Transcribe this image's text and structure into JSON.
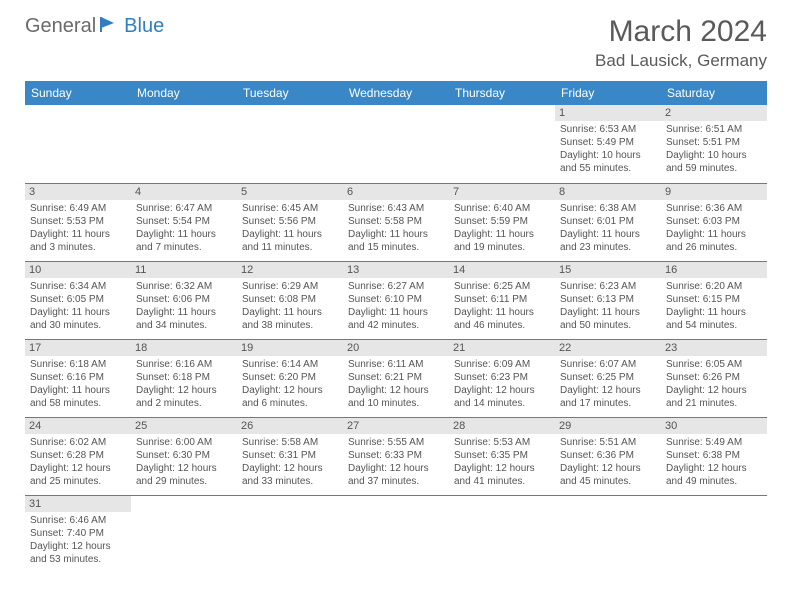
{
  "logo": {
    "general": "General",
    "blue": "Blue"
  },
  "title": "March 2024",
  "location": "Bad Lausick, Germany",
  "header_bg": "#3a87c8",
  "header_fg": "#ffffff",
  "daynum_bg": "#e6e6e6",
  "border_color": "#3a87c8",
  "weekdays": [
    "Sunday",
    "Monday",
    "Tuesday",
    "Wednesday",
    "Thursday",
    "Friday",
    "Saturday"
  ],
  "weeks": [
    [
      null,
      null,
      null,
      null,
      null,
      {
        "n": "1",
        "sr": "Sunrise: 6:53 AM",
        "ss": "Sunset: 5:49 PM",
        "dl1": "Daylight: 10 hours",
        "dl2": "and 55 minutes."
      },
      {
        "n": "2",
        "sr": "Sunrise: 6:51 AM",
        "ss": "Sunset: 5:51 PM",
        "dl1": "Daylight: 10 hours",
        "dl2": "and 59 minutes."
      }
    ],
    [
      {
        "n": "3",
        "sr": "Sunrise: 6:49 AM",
        "ss": "Sunset: 5:53 PM",
        "dl1": "Daylight: 11 hours",
        "dl2": "and 3 minutes."
      },
      {
        "n": "4",
        "sr": "Sunrise: 6:47 AM",
        "ss": "Sunset: 5:54 PM",
        "dl1": "Daylight: 11 hours",
        "dl2": "and 7 minutes."
      },
      {
        "n": "5",
        "sr": "Sunrise: 6:45 AM",
        "ss": "Sunset: 5:56 PM",
        "dl1": "Daylight: 11 hours",
        "dl2": "and 11 minutes."
      },
      {
        "n": "6",
        "sr": "Sunrise: 6:43 AM",
        "ss": "Sunset: 5:58 PM",
        "dl1": "Daylight: 11 hours",
        "dl2": "and 15 minutes."
      },
      {
        "n": "7",
        "sr": "Sunrise: 6:40 AM",
        "ss": "Sunset: 5:59 PM",
        "dl1": "Daylight: 11 hours",
        "dl2": "and 19 minutes."
      },
      {
        "n": "8",
        "sr": "Sunrise: 6:38 AM",
        "ss": "Sunset: 6:01 PM",
        "dl1": "Daylight: 11 hours",
        "dl2": "and 23 minutes."
      },
      {
        "n": "9",
        "sr": "Sunrise: 6:36 AM",
        "ss": "Sunset: 6:03 PM",
        "dl1": "Daylight: 11 hours",
        "dl2": "and 26 minutes."
      }
    ],
    [
      {
        "n": "10",
        "sr": "Sunrise: 6:34 AM",
        "ss": "Sunset: 6:05 PM",
        "dl1": "Daylight: 11 hours",
        "dl2": "and 30 minutes."
      },
      {
        "n": "11",
        "sr": "Sunrise: 6:32 AM",
        "ss": "Sunset: 6:06 PM",
        "dl1": "Daylight: 11 hours",
        "dl2": "and 34 minutes."
      },
      {
        "n": "12",
        "sr": "Sunrise: 6:29 AM",
        "ss": "Sunset: 6:08 PM",
        "dl1": "Daylight: 11 hours",
        "dl2": "and 38 minutes."
      },
      {
        "n": "13",
        "sr": "Sunrise: 6:27 AM",
        "ss": "Sunset: 6:10 PM",
        "dl1": "Daylight: 11 hours",
        "dl2": "and 42 minutes."
      },
      {
        "n": "14",
        "sr": "Sunrise: 6:25 AM",
        "ss": "Sunset: 6:11 PM",
        "dl1": "Daylight: 11 hours",
        "dl2": "and 46 minutes."
      },
      {
        "n": "15",
        "sr": "Sunrise: 6:23 AM",
        "ss": "Sunset: 6:13 PM",
        "dl1": "Daylight: 11 hours",
        "dl2": "and 50 minutes."
      },
      {
        "n": "16",
        "sr": "Sunrise: 6:20 AM",
        "ss": "Sunset: 6:15 PM",
        "dl1": "Daylight: 11 hours",
        "dl2": "and 54 minutes."
      }
    ],
    [
      {
        "n": "17",
        "sr": "Sunrise: 6:18 AM",
        "ss": "Sunset: 6:16 PM",
        "dl1": "Daylight: 11 hours",
        "dl2": "and 58 minutes."
      },
      {
        "n": "18",
        "sr": "Sunrise: 6:16 AM",
        "ss": "Sunset: 6:18 PM",
        "dl1": "Daylight: 12 hours",
        "dl2": "and 2 minutes."
      },
      {
        "n": "19",
        "sr": "Sunrise: 6:14 AM",
        "ss": "Sunset: 6:20 PM",
        "dl1": "Daylight: 12 hours",
        "dl2": "and 6 minutes."
      },
      {
        "n": "20",
        "sr": "Sunrise: 6:11 AM",
        "ss": "Sunset: 6:21 PM",
        "dl1": "Daylight: 12 hours",
        "dl2": "and 10 minutes."
      },
      {
        "n": "21",
        "sr": "Sunrise: 6:09 AM",
        "ss": "Sunset: 6:23 PM",
        "dl1": "Daylight: 12 hours",
        "dl2": "and 14 minutes."
      },
      {
        "n": "22",
        "sr": "Sunrise: 6:07 AM",
        "ss": "Sunset: 6:25 PM",
        "dl1": "Daylight: 12 hours",
        "dl2": "and 17 minutes."
      },
      {
        "n": "23",
        "sr": "Sunrise: 6:05 AM",
        "ss": "Sunset: 6:26 PM",
        "dl1": "Daylight: 12 hours",
        "dl2": "and 21 minutes."
      }
    ],
    [
      {
        "n": "24",
        "sr": "Sunrise: 6:02 AM",
        "ss": "Sunset: 6:28 PM",
        "dl1": "Daylight: 12 hours",
        "dl2": "and 25 minutes."
      },
      {
        "n": "25",
        "sr": "Sunrise: 6:00 AM",
        "ss": "Sunset: 6:30 PM",
        "dl1": "Daylight: 12 hours",
        "dl2": "and 29 minutes."
      },
      {
        "n": "26",
        "sr": "Sunrise: 5:58 AM",
        "ss": "Sunset: 6:31 PM",
        "dl1": "Daylight: 12 hours",
        "dl2": "and 33 minutes."
      },
      {
        "n": "27",
        "sr": "Sunrise: 5:55 AM",
        "ss": "Sunset: 6:33 PM",
        "dl1": "Daylight: 12 hours",
        "dl2": "and 37 minutes."
      },
      {
        "n": "28",
        "sr": "Sunrise: 5:53 AM",
        "ss": "Sunset: 6:35 PM",
        "dl1": "Daylight: 12 hours",
        "dl2": "and 41 minutes."
      },
      {
        "n": "29",
        "sr": "Sunrise: 5:51 AM",
        "ss": "Sunset: 6:36 PM",
        "dl1": "Daylight: 12 hours",
        "dl2": "and 45 minutes."
      },
      {
        "n": "30",
        "sr": "Sunrise: 5:49 AM",
        "ss": "Sunset: 6:38 PM",
        "dl1": "Daylight: 12 hours",
        "dl2": "and 49 minutes."
      }
    ],
    [
      {
        "n": "31",
        "sr": "Sunrise: 6:46 AM",
        "ss": "Sunset: 7:40 PM",
        "dl1": "Daylight: 12 hours",
        "dl2": "and 53 minutes."
      },
      null,
      null,
      null,
      null,
      null,
      null
    ]
  ]
}
